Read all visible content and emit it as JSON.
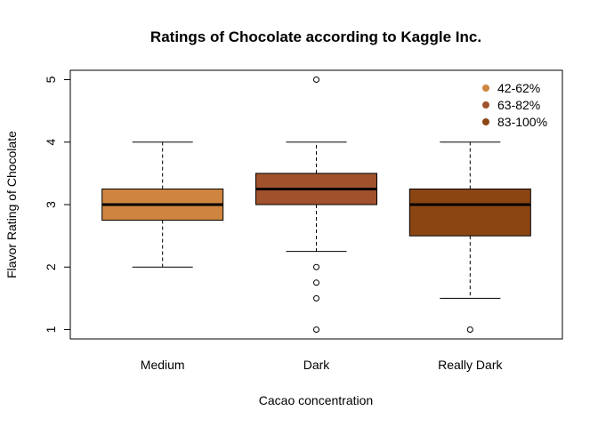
{
  "chart_data": {
    "type": "box",
    "title": "Ratings of Chocolate according to Kaggle Inc.",
    "xlabel": "Cacao concentration",
    "ylabel": "Flavor Rating of Chocolate",
    "categories": [
      "Medium",
      "Dark",
      "Really Dark"
    ],
    "ylim": [
      0.85,
      5.15
    ],
    "yticks": [
      "1",
      "2",
      "3",
      "4",
      "5"
    ],
    "grid": false,
    "legend_position": "top-right",
    "series": [
      {
        "name": "42-62%",
        "category": "Medium",
        "color": "#CD853F",
        "whisker_low": 2.0,
        "q1": 2.75,
        "median": 3.0,
        "q3": 3.25,
        "whisker_high": 4.0,
        "outliers": []
      },
      {
        "name": "63-82%",
        "category": "Dark",
        "color": "#A0522D",
        "whisker_low": 2.25,
        "q1": 3.0,
        "median": 3.25,
        "q3": 3.5,
        "whisker_high": 4.0,
        "outliers": [
          1.0,
          1.5,
          1.75,
          2.0,
          5.0
        ]
      },
      {
        "name": "83-100%",
        "category": "Really Dark",
        "color": "#8B4513",
        "whisker_low": 1.5,
        "q1": 2.5,
        "median": 3.0,
        "q3": 3.25,
        "whisker_high": 4.0,
        "outliers": [
          1.0
        ]
      }
    ]
  }
}
